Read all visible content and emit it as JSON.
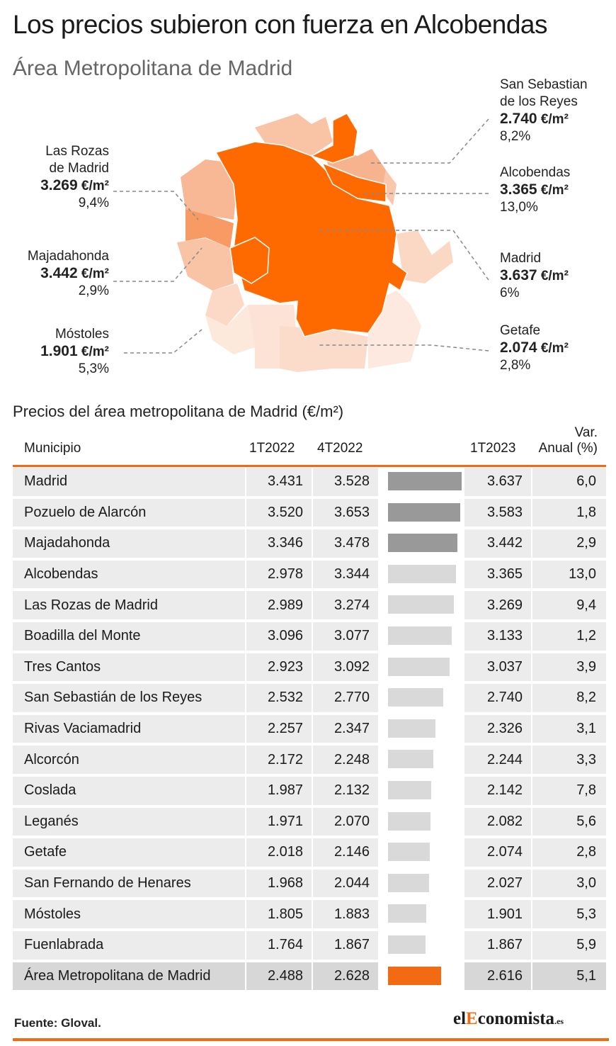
{
  "header": {
    "title": "Los precios subieron con fuerza en Alcobendas",
    "subtitle": "Área Metropolitana de Madrid"
  },
  "colors": {
    "accent": "#f26b12",
    "bar_top": "#999999",
    "bar_other": "#d9d9d9"
  },
  "callouts": {
    "las_rozas": {
      "name1": "Las Rozas",
      "name2": "de Madrid",
      "price": "3.269",
      "unit": " €/m²",
      "change": "9,4%"
    },
    "majadahonda": {
      "name1": "Majadahonda",
      "price": "3.442",
      "unit": " €/m²",
      "change": "2,9%"
    },
    "mostoles": {
      "name1": "Móstoles",
      "price": "1.901",
      "unit": " €/m²",
      "change": "5,3%"
    },
    "san_sebastian": {
      "name1": "San Sebastian",
      "name2": "de los Reyes",
      "price": "2.740",
      "unit": " €/m²",
      "change": "8,2%"
    },
    "alcobendas": {
      "name1": "Alcobendas",
      "price": "3.365",
      "unit": " €/m²",
      "change": "13,0%"
    },
    "madrid": {
      "name1": "Madrid",
      "price": "3.637",
      "unit": " €/m²",
      "change": "6%"
    },
    "getafe": {
      "name1": "Getafe",
      "price": "2.074",
      "unit": " €/m²",
      "change": "2,8%"
    }
  },
  "table": {
    "title": "Precios del área metropolitana de Madrid (€/m²)",
    "headers": {
      "municipio": "Municipio",
      "q1_22": "1T2022",
      "q4_22": "4T2022",
      "q1_23": "1T2023",
      "var1": "Var.",
      "var2": "Anual (%)"
    }
  },
  "chart_data": {
    "type": "table",
    "columns": [
      "Municipio",
      "1T2022",
      "4T2022",
      "1T2023",
      "Var. Anual (%)"
    ],
    "rows": [
      {
        "name": "Madrid",
        "q1_22": "3.431",
        "q4_22": "3.528",
        "q1_23": "3.637",
        "value": 3637,
        "var": "6,0",
        "highlight": "top"
      },
      {
        "name": "Pozuelo de Alarcón",
        "q1_22": "3.520",
        "q4_22": "3.653",
        "q1_23": "3.583",
        "value": 3583,
        "var": "1,8",
        "highlight": "top"
      },
      {
        "name": "Majadahonda",
        "q1_22": "3.346",
        "q4_22": "3.478",
        "q1_23": "3.442",
        "value": 3442,
        "var": "2,9",
        "highlight": "top"
      },
      {
        "name": "Alcobendas",
        "q1_22": "2.978",
        "q4_22": "3.344",
        "q1_23": "3.365",
        "value": 3365,
        "var": "13,0",
        "highlight": "none"
      },
      {
        "name": "Las Rozas de Madrid",
        "q1_22": "2.989",
        "q4_22": "3.274",
        "q1_23": "3.269",
        "value": 3269,
        "var": "9,4",
        "highlight": "none"
      },
      {
        "name": "Boadilla del Monte",
        "q1_22": "3.096",
        "q4_22": "3.077",
        "q1_23": "3.133",
        "value": 3133,
        "var": "1,2",
        "highlight": "none"
      },
      {
        "name": "Tres Cantos",
        "q1_22": "2.923",
        "q4_22": "3.092",
        "q1_23": "3.037",
        "value": 3037,
        "var": "3,9",
        "highlight": "none"
      },
      {
        "name": "San Sebastián de los Reyes",
        "q1_22": "2.532",
        "q4_22": "2.770",
        "q1_23": "2.740",
        "value": 2740,
        "var": "8,2",
        "highlight": "none"
      },
      {
        "name": "Rivas Vaciamadrid",
        "q1_22": "2.257",
        "q4_22": "2.347",
        "q1_23": "2.326",
        "value": 2326,
        "var": "3,1",
        "highlight": "none"
      },
      {
        "name": "Alcorcón",
        "q1_22": "2.172",
        "q4_22": "2.248",
        "q1_23": "2.244",
        "value": 2244,
        "var": "3,3",
        "highlight": "none"
      },
      {
        "name": "Coslada",
        "q1_22": "1.987",
        "q4_22": "2.132",
        "q1_23": "2.142",
        "value": 2142,
        "var": "7,8",
        "highlight": "none"
      },
      {
        "name": "Leganés",
        "q1_22": "1.971",
        "q4_22": "2.070",
        "q1_23": "2.082",
        "value": 2082,
        "var": "5,6",
        "highlight": "none"
      },
      {
        "name": "Getafe",
        "q1_22": "2.018",
        "q4_22": "2.146",
        "q1_23": "2.074",
        "value": 2074,
        "var": "2,8",
        "highlight": "none"
      },
      {
        "name": "San Fernando de Henares",
        "q1_22": "1.968",
        "q4_22": "2.044",
        "q1_23": "2.027",
        "value": 2027,
        "var": "3,0",
        "highlight": "none"
      },
      {
        "name": "Móstoles",
        "q1_22": "1.805",
        "q4_22": "1.883",
        "q1_23": "1.901",
        "value": 1901,
        "var": "5,3",
        "highlight": "none"
      },
      {
        "name": "Fuenlabrada",
        "q1_22": "1.764",
        "q4_22": "1.867",
        "q1_23": "1.867",
        "value": 1867,
        "var": "5,9",
        "highlight": "none"
      },
      {
        "name": "Área Metropolitana de Madrid",
        "q1_22": "2.488",
        "q4_22": "2.628",
        "q1_23": "2.616",
        "value": 2616,
        "var": "5,1",
        "highlight": "total"
      }
    ],
    "bar_max": 3637
  },
  "footer": {
    "source": "Fuente: Gloval.",
    "logo_pre": "el",
    "logo_e": "E",
    "logo_post": "conomista",
    "logo_es": ".es"
  }
}
